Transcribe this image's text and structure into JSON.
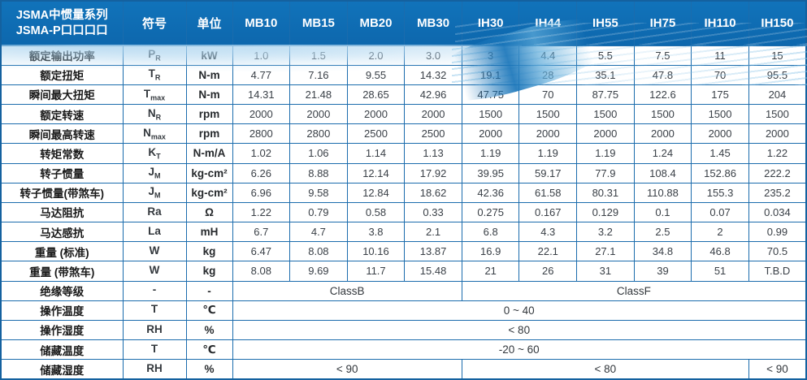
{
  "colors": {
    "header_bg": "#0e6db6",
    "grid_border": "#1b6cad",
    "swoosh_light": "#a8d2ee",
    "swoosh_dark": "#1a76ba",
    "body_text": "#3a4047"
  },
  "header": {
    "title_line1": "JSMA中惯量系列",
    "title_line2": "JSMA-P口口口口",
    "symbol_col": "符号",
    "unit_col": "单位",
    "models": [
      "MB10",
      "MB15",
      "MB20",
      "MB30",
      "IH30",
      "IH44",
      "IH55",
      "IH75",
      "IH110",
      "IH150"
    ]
  },
  "rows": [
    {
      "label": "额定输出功率",
      "sym": "P",
      "sub": "R",
      "unit": "kW",
      "values": [
        "1.0",
        "1.5",
        "2.0",
        "3.0",
        "3",
        "4.4",
        "5.5",
        "7.5",
        "11",
        "15"
      ]
    },
    {
      "label": "额定扭矩",
      "sym": "T",
      "sub": "R",
      "unit": "N-m",
      "values": [
        "4.77",
        "7.16",
        "9.55",
        "14.32",
        "19.1",
        "28",
        "35.1",
        "47.8",
        "70",
        "95.5"
      ]
    },
    {
      "label": "瞬间最大扭矩",
      "sym": "T",
      "sub": "max",
      "unit": "N-m",
      "values": [
        "14.31",
        "21.48",
        "28.65",
        "42.96",
        "47.75",
        "70",
        "87.75",
        "122.6",
        "175",
        "204"
      ]
    },
    {
      "label": "额定转速",
      "sym": "N",
      "sub": "R",
      "unit": "rpm",
      "values": [
        "2000",
        "2000",
        "2000",
        "2000",
        "1500",
        "1500",
        "1500",
        "1500",
        "1500",
        "1500"
      ]
    },
    {
      "label": "瞬间最高转速",
      "sym": "N",
      "sub": "max",
      "unit": "rpm",
      "values": [
        "2800",
        "2800",
        "2500",
        "2500",
        "2000",
        "2000",
        "2000",
        "2000",
        "2000",
        "2000"
      ]
    },
    {
      "label": "转矩常数",
      "sym": "K",
      "sub": "T",
      "unit": "N-m/A",
      "values": [
        "1.02",
        "1.06",
        "1.14",
        "1.13",
        "1.19",
        "1.19",
        "1.19",
        "1.24",
        "1.45",
        "1.22"
      ]
    },
    {
      "label": "转子惯量",
      "sym": "J",
      "sub": "M",
      "unit": "kg-cm²",
      "values": [
        "6.26",
        "8.88",
        "12.14",
        "17.92",
        "39.95",
        "59.17",
        "77.9",
        "108.4",
        "152.86",
        "222.2"
      ]
    },
    {
      "label": "转子惯量(带煞车)",
      "sym": "J",
      "sub": "M",
      "unit": "kg-cm²",
      "values": [
        "6.96",
        "9.58",
        "12.84",
        "18.62",
        "42.36",
        "61.58",
        "80.31",
        "110.88",
        "155.3",
        "235.2"
      ]
    },
    {
      "label": "马达阻抗",
      "sym": "Ra",
      "sub": "",
      "unit": "Ω",
      "values": [
        "1.22",
        "0.79",
        "0.58",
        "0.33",
        "0.275",
        "0.167",
        "0.129",
        "0.1",
        "0.07",
        "0.034"
      ]
    },
    {
      "label": "马达感抗",
      "sym": "La",
      "sub": "",
      "unit": "mH",
      "values": [
        "6.7",
        "4.7",
        "3.8",
        "2.1",
        "6.8",
        "4.3",
        "3.2",
        "2.5",
        "2",
        "0.99"
      ]
    },
    {
      "label": "重量 (标准)",
      "sym": "W",
      "sub": "",
      "unit": "kg",
      "values": [
        "6.47",
        "8.08",
        "10.16",
        "13.87",
        "16.9",
        "22.1",
        "27.1",
        "34.8",
        "46.8",
        "70.5"
      ]
    },
    {
      "label": "重量 (带煞车)",
      "sym": "W",
      "sub": "",
      "unit": "kg",
      "values": [
        "8.08",
        "9.69",
        "11.7",
        "15.48",
        "21",
        "26",
        "31",
        "39",
        "51",
        "T.B.D"
      ]
    },
    {
      "label": "绝缘等级",
      "sym": "-",
      "sub": "",
      "unit": "-",
      "spans": [
        {
          "text": "ClassB",
          "cols": 4
        },
        {
          "text": "ClassF",
          "cols": 6
        }
      ]
    },
    {
      "label": "操作温度",
      "sym": "T",
      "sub": "",
      "unit": "℃",
      "spans": [
        {
          "text": "0 ~ 40",
          "cols": 10
        }
      ]
    },
    {
      "label": "操作湿度",
      "sym": "RH",
      "sub": "",
      "unit": "%",
      "spans": [
        {
          "text": "< 80",
          "cols": 10
        }
      ]
    },
    {
      "label": "储藏温度",
      "sym": "T",
      "sub": "",
      "unit": "℃",
      "spans": [
        {
          "text": "-20 ~ 60",
          "cols": 10
        }
      ]
    },
    {
      "label": "储藏湿度",
      "sym": "RH",
      "sub": "",
      "unit": "%",
      "spans": [
        {
          "text": "< 90",
          "cols": 4
        },
        {
          "text": "< 80",
          "cols": 5
        },
        {
          "text": "< 90",
          "cols": 1
        }
      ]
    }
  ]
}
